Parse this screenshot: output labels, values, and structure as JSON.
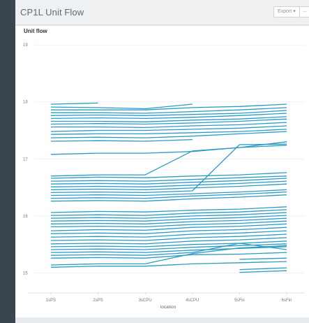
{
  "panel": {
    "title": "CP1L Unit Flow",
    "export_label": "Export",
    "more_label": "..."
  },
  "chart_data": {
    "type": "line",
    "title": "Unit flow",
    "xlabel": "location",
    "ylabel": "",
    "categories": [
      "1sPS",
      "2sPS",
      "3sCPU",
      "4sCPU",
      "5sFin",
      "6sFin"
    ],
    "ylim": [
      14.65,
      19.1
    ],
    "yticks": [
      15,
      16,
      17,
      18,
      19
    ],
    "grid": true,
    "legend": "none",
    "color": "#2a9bc4",
    "series": [
      {
        "values": [
          17.96,
          17.98,
          null,
          null,
          null,
          null
        ]
      },
      {
        "values": [
          17.91,
          17.9,
          17.88,
          17.96,
          null,
          null
        ]
      },
      {
        "values": [
          17.86,
          17.86,
          17.86,
          17.9,
          17.92,
          17.96
        ]
      },
      {
        "values": [
          17.81,
          17.81,
          17.8,
          17.83,
          17.86,
          17.9
        ]
      },
      {
        "values": [
          17.76,
          17.77,
          17.76,
          17.78,
          17.8,
          17.85
        ]
      },
      {
        "values": [
          17.71,
          17.72,
          17.71,
          17.73,
          17.76,
          17.8
        ]
      },
      {
        "values": [
          17.66,
          17.66,
          17.65,
          17.68,
          17.7,
          17.74
        ]
      },
      {
        "values": [
          17.61,
          17.62,
          17.61,
          17.63,
          17.66,
          17.7
        ]
      },
      {
        "values": [
          17.56,
          17.56,
          17.55,
          17.58,
          17.6,
          17.64
        ]
      },
      {
        "values": [
          17.48,
          17.5,
          17.5,
          17.52,
          17.54,
          17.58
        ]
      },
      {
        "values": [
          17.43,
          17.44,
          17.44,
          17.46,
          17.48,
          17.52
        ]
      },
      {
        "values": [
          17.37,
          17.38,
          17.37,
          17.4,
          17.44,
          17.48
        ]
      },
      {
        "values": [
          17.31,
          17.32,
          17.31,
          17.34,
          null,
          null
        ]
      },
      {
        "values": [
          17.08,
          17.1,
          17.1,
          17.13,
          17.2,
          17.24
        ]
      },
      {
        "values": [
          16.7,
          16.72,
          16.72,
          17.14,
          17.2,
          17.3
        ]
      },
      {
        "values": [
          16.66,
          16.68,
          16.67,
          16.7,
          16.72,
          16.76
        ]
      },
      {
        "values": [
          16.61,
          16.62,
          16.61,
          16.64,
          16.67,
          16.7
        ]
      },
      {
        "values": [
          16.56,
          16.57,
          16.56,
          16.59,
          16.62,
          16.66
        ]
      },
      {
        "values": [
          16.51,
          16.52,
          16.51,
          16.54,
          16.57,
          16.61
        ]
      },
      {
        "values": [
          16.46,
          16.47,
          16.46,
          16.49,
          16.52,
          16.56
        ]
      },
      {
        "values": [
          16.41,
          16.42,
          16.41,
          16.44,
          17.25,
          17.26
        ]
      },
      {
        "values": [
          16.36,
          16.37,
          16.36,
          16.39,
          16.42,
          16.46
        ]
      },
      {
        "values": [
          16.31,
          16.32,
          16.31,
          16.35,
          16.38,
          16.42
        ]
      },
      {
        "values": [
          16.26,
          16.27,
          16.26,
          16.3,
          16.33,
          16.37
        ]
      },
      {
        "values": [
          16.06,
          16.08,
          16.07,
          16.1,
          16.12,
          16.16
        ]
      },
      {
        "values": [
          16.01,
          16.02,
          16.01,
          16.05,
          16.07,
          16.11
        ]
      },
      {
        "values": [
          15.96,
          15.97,
          15.96,
          16.0,
          16.02,
          16.06
        ]
      },
      {
        "values": [
          15.91,
          15.92,
          15.91,
          15.95,
          15.97,
          16.01
        ]
      },
      {
        "values": [
          15.86,
          15.87,
          15.86,
          15.9,
          15.92,
          15.96
        ]
      },
      {
        "values": [
          15.81,
          15.82,
          15.81,
          15.85,
          15.87,
          15.91
        ]
      },
      {
        "values": [
          15.74,
          15.76,
          15.75,
          15.8,
          15.82,
          15.86
        ]
      },
      {
        "values": [
          15.69,
          15.7,
          15.69,
          15.74,
          15.76,
          15.8
        ]
      },
      {
        "values": [
          15.63,
          15.64,
          15.63,
          15.68,
          15.7,
          15.74
        ]
      },
      {
        "values": [
          15.57,
          15.58,
          15.57,
          15.62,
          15.64,
          15.68
        ]
      },
      {
        "values": [
          15.51,
          15.52,
          15.51,
          15.56,
          15.58,
          15.62
        ]
      },
      {
        "values": [
          15.46,
          15.47,
          15.46,
          15.5,
          15.52,
          15.56
        ]
      },
      {
        "values": [
          15.41,
          15.42,
          15.41,
          15.45,
          15.48,
          15.51
        ]
      },
      {
        "values": [
          15.36,
          15.37,
          15.36,
          15.4,
          15.43,
          15.46
        ]
      },
      {
        "values": [
          15.31,
          15.32,
          15.31,
          15.36,
          15.52,
          15.41
        ]
      },
      {
        "values": [
          15.26,
          15.27,
          15.26,
          15.32,
          15.33,
          15.36
        ]
      },
      {
        "values": [
          15.14,
          15.16,
          15.16,
          15.34,
          15.44,
          15.48
        ]
      },
      {
        "values": [
          15.1,
          15.12,
          15.12,
          15.16,
          15.18,
          15.2
        ]
      },
      {
        "values": [
          null,
          null,
          null,
          null,
          15.24,
          15.26
        ]
      },
      {
        "values": [
          null,
          null,
          null,
          null,
          15.06,
          15.09
        ]
      },
      {
        "values": [
          null,
          null,
          null,
          null,
          15.01,
          15.04
        ]
      }
    ]
  }
}
